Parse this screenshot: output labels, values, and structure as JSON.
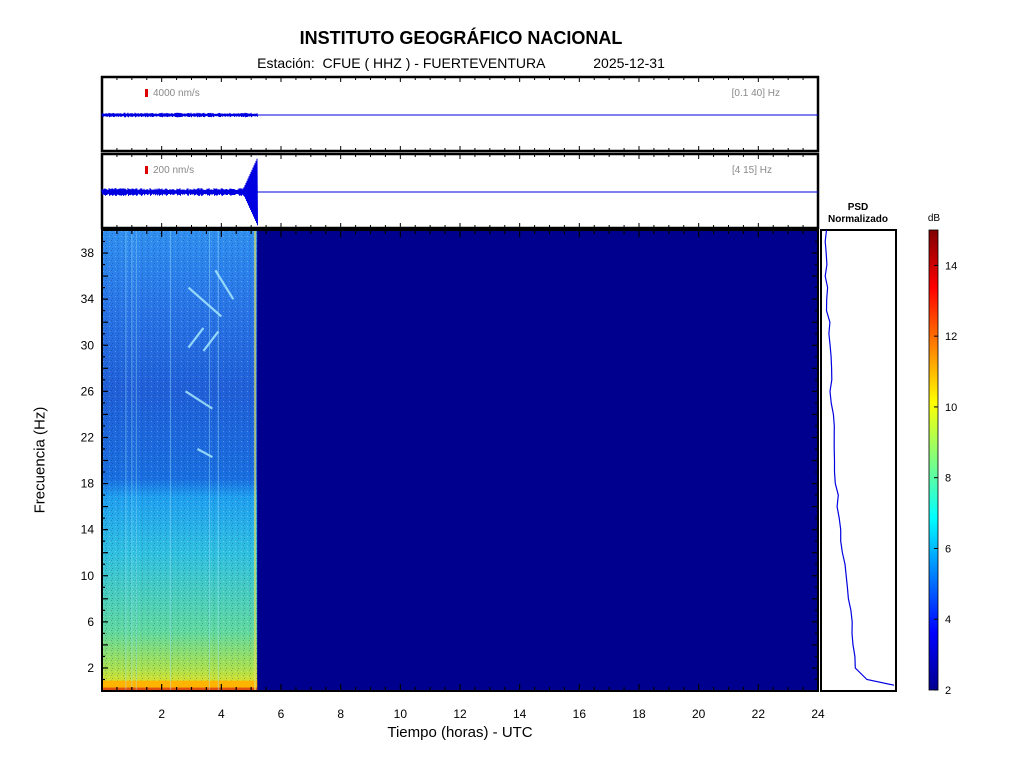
{
  "header": {
    "title": "INSTITUTO GEOGRÁFICO NACIONAL",
    "station_label": "Estación:",
    "station": "CFUE ( HHZ ) - FUERTEVENTURA",
    "date": "2025-12-31"
  },
  "traces": [
    {
      "amplitude_label": "4000 nm/s",
      "band_label": "[0.1 40] Hz",
      "data_end_hour": 5.2
    },
    {
      "amplitude_label": "200 nm/s",
      "band_label": "[4 15] Hz",
      "data_end_hour": 5.2
    }
  ],
  "colors": {
    "trace": "#0000e0",
    "scale_bar": "#dd0000",
    "spectrogram_background": "#00008f"
  },
  "chart_data": {
    "type": "heatmap",
    "xlabel": "Tiempo (horas) - UTC",
    "ylabel": "Frecuencia  (Hz)",
    "xlim": [
      0,
      24
    ],
    "ylim": [
      0,
      40
    ],
    "x_ticks": [
      2,
      4,
      6,
      8,
      10,
      12,
      14,
      16,
      18,
      20,
      22,
      24
    ],
    "y_ticks": [
      2,
      6,
      10,
      14,
      18,
      22,
      26,
      30,
      34,
      38
    ],
    "data_end_hour": 5.2,
    "colorbar": {
      "unit": "dB",
      "range": [
        2,
        15
      ],
      "ticks": [
        2,
        4,
        6,
        8,
        10,
        12,
        14
      ],
      "colormap": "jet"
    },
    "psd": {
      "title_line1": "PSD",
      "title_line2": "Normalizado",
      "frequency": [
        0.5,
        1,
        2,
        3,
        4,
        5,
        6,
        7,
        8,
        9,
        10,
        11,
        12,
        13,
        14,
        15,
        16,
        17,
        18,
        19,
        20,
        21,
        22,
        23,
        24,
        25,
        26,
        27,
        28,
        29,
        30,
        31,
        32,
        33,
        34,
        35,
        36,
        37,
        38,
        39,
        40
      ],
      "value": [
        1.0,
        0.62,
        0.47,
        0.45,
        0.43,
        0.42,
        0.41,
        0.39,
        0.37,
        0.34,
        0.32,
        0.31,
        0.29,
        0.27,
        0.25,
        0.23,
        0.22,
        0.21,
        0.19,
        0.18,
        0.17,
        0.16,
        0.15,
        0.14,
        0.13,
        0.13,
        0.12,
        0.11,
        0.1,
        0.1,
        0.09,
        0.08,
        0.08,
        0.07,
        0.06,
        0.06,
        0.05,
        0.05,
        0.05,
        0.04,
        0.03
      ]
    }
  }
}
